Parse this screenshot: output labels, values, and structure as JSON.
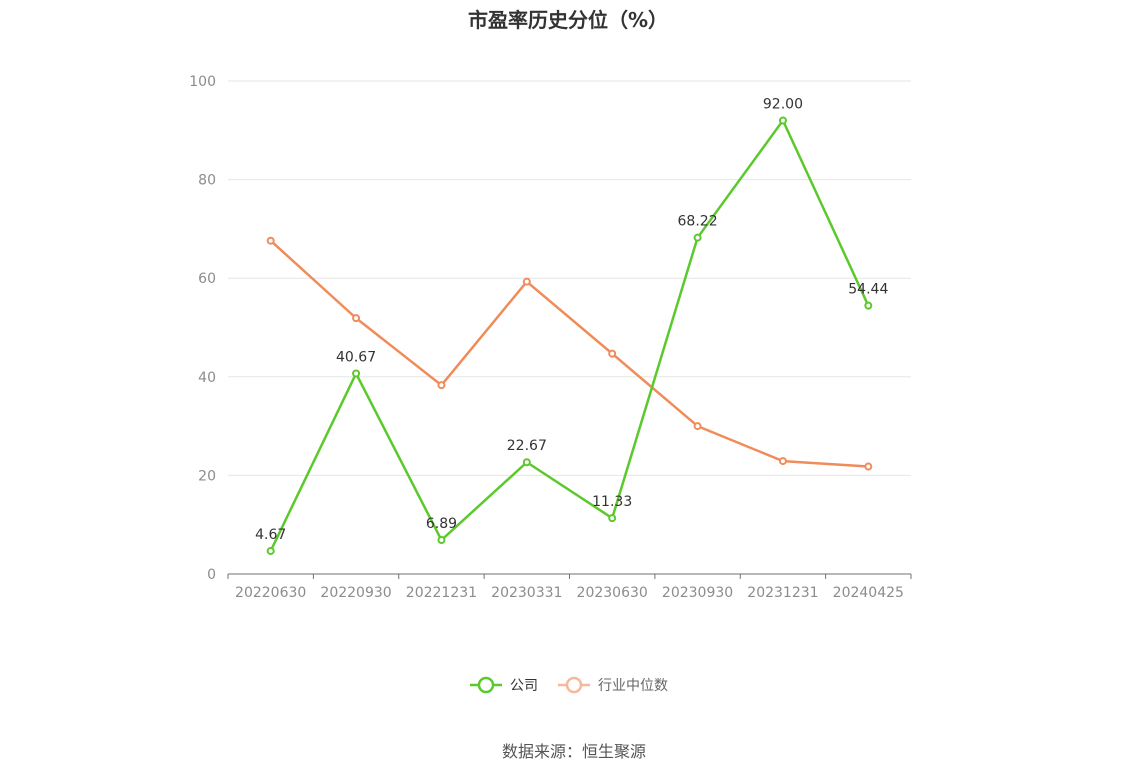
{
  "chart_data": {
    "type": "line",
    "title": "市盈率历史分位（%）",
    "categories": [
      "20220630",
      "20220930",
      "20221231",
      "20230331",
      "20230630",
      "20230930",
      "20231231",
      "20240425"
    ],
    "series": [
      {
        "name": "公司",
        "color": "#5bc92c",
        "values": [
          4.67,
          40.67,
          6.89,
          22.67,
          11.33,
          68.22,
          92.0,
          54.44
        ],
        "labels": [
          "4.67",
          "40.67",
          "6.89",
          "22.67",
          "11.33",
          "68.22",
          "92.00",
          "54.44"
        ]
      },
      {
        "name": "行业中位数",
        "color": "#f08c5a",
        "legend_color": "#f7b79a",
        "values": [
          67.6,
          51.9,
          38.3,
          59.3,
          44.7,
          30.0,
          22.9,
          21.8
        ]
      }
    ],
    "ylim": [
      0,
      100
    ],
    "yticks": [
      "0",
      "20",
      "40",
      "60",
      "80",
      "100"
    ],
    "grid": true,
    "legend_position": "bottom"
  },
  "source": "数据来源：恒生聚源"
}
